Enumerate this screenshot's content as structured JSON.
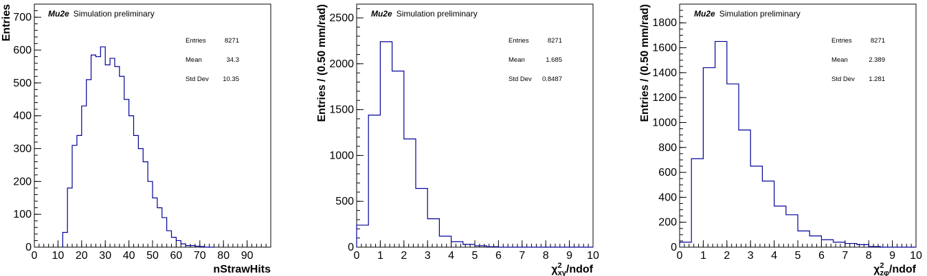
{
  "colors": {
    "histogram": "#000099",
    "axes": "#000000",
    "background": "#ffffff"
  },
  "chart_data": [
    {
      "type": "histogram",
      "experiment_label": "Mu2e",
      "status_label": "Simulation preliminary",
      "xlabel": "nStrawHits",
      "ylabel": "Entries",
      "xlim": [
        0,
        100
      ],
      "ylim": [
        0,
        740
      ],
      "xticks": [
        0,
        10,
        20,
        30,
        40,
        50,
        60,
        70,
        80,
        90
      ],
      "yticks": [
        0,
        100,
        200,
        300,
        400,
        500,
        600,
        700
      ],
      "x_minor_step": 2,
      "y_minor_step": 20,
      "grid": false,
      "legend": "none",
      "bin_width": 2,
      "bins_start": 12,
      "values": [
        45,
        180,
        310,
        340,
        430,
        510,
        585,
        580,
        610,
        555,
        575,
        550,
        520,
        450,
        400,
        340,
        300,
        260,
        200,
        150,
        120,
        90,
        50,
        30,
        20,
        10,
        5,
        5,
        3,
        2,
        0,
        0
      ],
      "stats": {
        "entries_label": "Entries",
        "entries": "8271",
        "mean_label": "Mean",
        "mean": "34.3",
        "std_label": "Std Dev",
        "std": "10.35"
      }
    },
    {
      "type": "histogram",
      "experiment_label": "Mu2e",
      "status_label": "Simulation preliminary",
      "xlabel_main": "χ",
      "xlabel_sup": "2",
      "xlabel_sub": "xy",
      "xlabel_tail": "/ndof",
      "ylabel": "Entries / (0.50 mm/rad)",
      "xlim": [
        0,
        10
      ],
      "ylim": [
        0,
        2650
      ],
      "xticks": [
        0,
        1,
        2,
        3,
        4,
        5,
        6,
        7,
        8,
        9,
        10
      ],
      "yticks": [
        0,
        500,
        1000,
        1500,
        2000,
        2500
      ],
      "x_minor_step": 0.2,
      "y_minor_step": 100,
      "grid": false,
      "legend": "none",
      "bin_width": 0.5,
      "bins_start": 0,
      "values": [
        240,
        1440,
        2240,
        1920,
        1180,
        640,
        310,
        120,
        60,
        30,
        15,
        5,
        0,
        0,
        0,
        0,
        0,
        0,
        0,
        0
      ],
      "stats": {
        "entries_label": "Entries",
        "entries": "8271",
        "mean_label": "Mean",
        "mean": "1.685",
        "std_label": "Std Dev",
        "std": "0.8487"
      }
    },
    {
      "type": "histogram",
      "experiment_label": "Mu2e",
      "status_label": "Simulation preliminary",
      "xlabel_main": "χ",
      "xlabel_sup": "2",
      "xlabel_sub": "zφ",
      "xlabel_tail": "/ndof",
      "ylabel": "Entries / (0.50 mm/rad)",
      "xlim": [
        0,
        10
      ],
      "ylim": [
        0,
        1950
      ],
      "xticks": [
        0,
        1,
        2,
        3,
        4,
        5,
        6,
        7,
        8,
        9,
        10
      ],
      "yticks": [
        0,
        200,
        400,
        600,
        800,
        1000,
        1200,
        1400,
        1600,
        1800
      ],
      "x_minor_step": 0.2,
      "y_minor_step": 50,
      "grid": false,
      "legend": "none",
      "bin_width": 0.5,
      "bins_start": 0,
      "values": [
        40,
        710,
        1440,
        1650,
        1310,
        940,
        650,
        530,
        330,
        260,
        130,
        90,
        60,
        40,
        30,
        20,
        5,
        0,
        0,
        0
      ],
      "stats": {
        "entries_label": "Entries",
        "entries": "8271",
        "mean_label": "Mean",
        "mean": "2.389",
        "std_label": "Std Dev",
        "std": "1.281"
      }
    }
  ]
}
